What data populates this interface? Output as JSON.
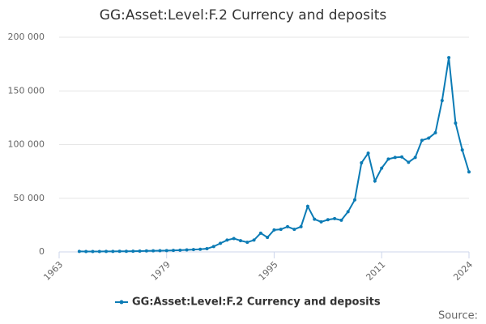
{
  "chart_data": {
    "type": "line",
    "title": "GG:Asset:Level:F.2 Currency and deposits",
    "source_label": "Source:",
    "x": [
      1966,
      1967,
      1968,
      1969,
      1970,
      1971,
      1972,
      1973,
      1974,
      1975,
      1976,
      1977,
      1978,
      1979,
      1980,
      1981,
      1982,
      1983,
      1984,
      1985,
      1986,
      1987,
      1988,
      1989,
      1990,
      1991,
      1992,
      1993,
      1994,
      1995,
      1996,
      1997,
      1998,
      1999,
      2000,
      2001,
      2002,
      2003,
      2004,
      2005,
      2006,
      2007,
      2008,
      2009,
      2010,
      2011,
      2012,
      2013,
      2014,
      2015,
      2016,
      2017,
      2018,
      2019,
      2020,
      2021,
      2022,
      2023,
      2024
    ],
    "series": [
      {
        "name": "GG:Asset:Level:F.2 Currency and deposits",
        "color": "#0b7bb5",
        "values": [
          500,
          400,
          400,
          400,
          500,
          500,
          600,
          600,
          700,
          800,
          900,
          1000,
          1100,
          1200,
          1400,
          1600,
          1900,
          2200,
          2500,
          3000,
          5000,
          8000,
          11000,
          12500,
          10500,
          9000,
          11000,
          17500,
          13500,
          20500,
          21000,
          23500,
          21000,
          23500,
          42500,
          30500,
          28000,
          30000,
          31000,
          29500,
          37500,
          48500,
          83000,
          92000,
          66000,
          78000,
          86500,
          88000,
          88500,
          83500,
          88000,
          104000,
          106000,
          111000,
          141000,
          181000,
          120000,
          95000,
          74500
        ]
      }
    ],
    "xlim": [
      1963,
      2024
    ],
    "xticks": [
      1963,
      1979,
      1995,
      2011,
      2024
    ],
    "ylim": [
      0,
      200000
    ],
    "yticks": [
      0,
      {
        "value": 50000,
        "label": "50 000"
      },
      {
        "value": 100000,
        "label": "100 000"
      },
      {
        "value": 150000,
        "label": "150 000"
      },
      {
        "value": 200000,
        "label": "200 000"
      }
    ],
    "grid": true,
    "legend": "bottom"
  }
}
